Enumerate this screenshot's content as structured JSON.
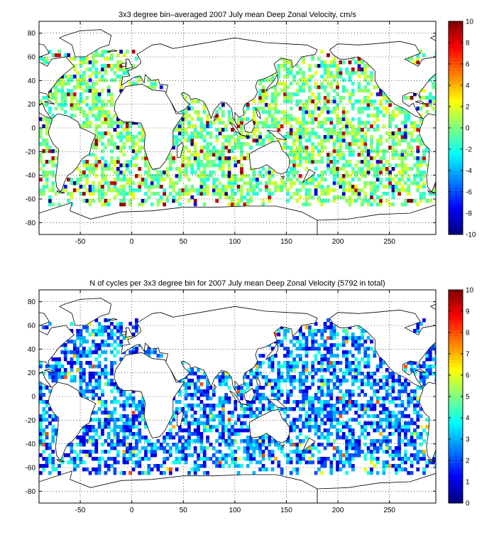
{
  "chart_data": [
    {
      "type": "heatmap",
      "title": "3x3 degree bin–averaged 2007 July mean Deep Zonal Velocity, cm/s",
      "xlim": [
        -90,
        295
      ],
      "ylim": [
        -90,
        90
      ],
      "xticks": [
        -50,
        0,
        50,
        100,
        150,
        200,
        250
      ],
      "yticks": [
        80,
        60,
        40,
        20,
        0,
        -20,
        -40,
        -60,
        -80
      ],
      "grid": true,
      "grid_style": "dotted",
      "bin_size_deg": 3,
      "colorbar": {
        "min": -10,
        "max": 10,
        "ticks": [
          10,
          8,
          6,
          4,
          2,
          0,
          -2,
          -4,
          -6,
          -8,
          -10
        ],
        "colormap": "jet",
        "placement": "right"
      }
    },
    {
      "type": "heatmap",
      "title": "N of cycles per 3x3 degree bin for 2007 July mean Deep Zonal Velocity (5792 in total)",
      "xlim": [
        -90,
        295
      ],
      "ylim": [
        -90,
        90
      ],
      "xticks": [
        -50,
        0,
        50,
        100,
        150,
        200,
        250
      ],
      "yticks": [
        80,
        60,
        40,
        20,
        0,
        -20,
        -40,
        -60,
        -80
      ],
      "grid": true,
      "grid_style": "dotted",
      "bin_size_deg": 3,
      "total_cycles": 5792,
      "colorbar": {
        "min": 0,
        "max": 10,
        "ticks": [
          10,
          9,
          8,
          7,
          6,
          5,
          4,
          3,
          2,
          1,
          0
        ],
        "colormap": "jet",
        "placement": "right"
      }
    }
  ]
}
